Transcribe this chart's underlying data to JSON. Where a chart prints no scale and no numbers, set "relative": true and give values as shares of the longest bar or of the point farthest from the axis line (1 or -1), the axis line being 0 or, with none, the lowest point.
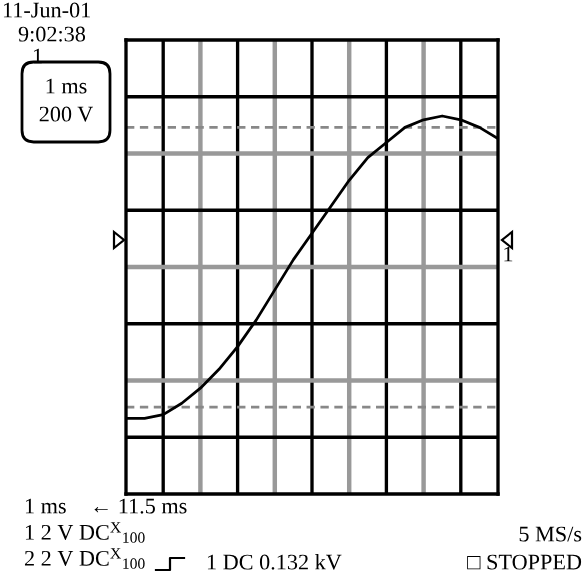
{
  "chart_data": {
    "type": "line",
    "relative": true,
    "categories": [
      null,
      null,
      null,
      null,
      null,
      null,
      null,
      null,
      null,
      null,
      null,
      null,
      null,
      null,
      null,
      null,
      null,
      null,
      null,
      null,
      null
    ],
    "series": [
      {
        "color": "#000000",
        "values": [
          0.2,
          0.2,
          0.21,
          0.24,
          0.28,
          0.33,
          0.39,
          0.46,
          0.54,
          0.62,
          0.69,
          0.76,
          0.83,
          0.89,
          0.93,
          0.97,
          0.99,
          1,
          0.99,
          0.97,
          0.94
        ]
      }
    ],
    "ref_lines": [
      {
        "axis": "y",
        "value": 0.97,
        "color": "#888888",
        "line_style": "dashed"
      },
      {
        "axis": "y",
        "value": 0.23,
        "color": "#888888",
        "line_style": "dashed"
      }
    ],
    "grid": true,
    "marker": "none",
    "line_style": "solid",
    "annotations": [
      "11-Jun-01",
      "9:02:38",
      "1",
      "1 ms",
      "200 V",
      "1 ms",
      "← 11.5 ms",
      "1 2 V DC$^{X}$$_{100}$",
      "5 MS/s",
      "2 2 V DC$^{X}$$_{100}$",
      "1 DC 0.132 kV",
      "□ STOPPED",
      "1"
    ]
  }
}
